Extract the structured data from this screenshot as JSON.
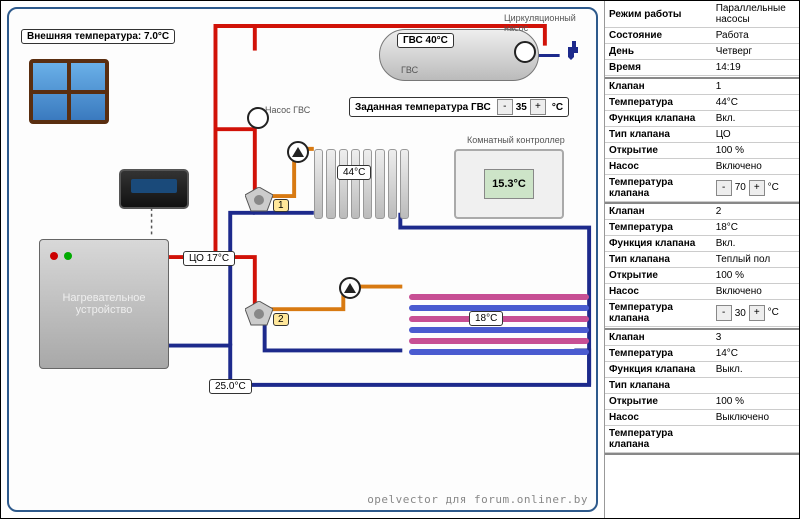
{
  "outside_temp_label": "Внешняя температура: 7.0°C",
  "circ_pump_label": "Циркуляционный насос",
  "gvs_pump_label": "Насос ГВС",
  "room_ctrl_label": "Комнатный контроллер",
  "boiler_label": "Нагревательное устройство",
  "tank_title": "ГВС 40°C",
  "tank_sub": "ГВС",
  "setpoint_label": "Заданная температура ГВС",
  "setpoint_value": "35",
  "setpoint_unit": "°C",
  "co_temp": "ЦО 17°C",
  "radiator_temp": "44°C",
  "room_temp": "15.3°C",
  "floor_temp": "18°C",
  "return_temp": "25.0°C",
  "valve1_num": "1",
  "valve2_num": "2",
  "colors": {
    "hot": "#d11208",
    "cold": "#1d2a8c",
    "warm": "#d87a12",
    "floor_a": "#c74f94",
    "floor_b": "#4a5bd0"
  },
  "panel": {
    "header": [
      [
        "Режим работы",
        "Параллельные насосы"
      ],
      [
        "Состояние",
        "Работа"
      ],
      [
        "День",
        "Четверг"
      ],
      [
        "Время",
        "14:19"
      ]
    ],
    "valves": [
      {
        "n": "1",
        "t": "44°C",
        "f": "Вкл.",
        "type": "ЦО",
        "open": "100 %",
        "pump": "Включено",
        "set": "70"
      },
      {
        "n": "2",
        "t": "18°C",
        "f": "Вкл.",
        "type": "Теплый пол",
        "open": "100 %",
        "pump": "Включено",
        "set": "30"
      },
      {
        "n": "3",
        "t": "14°C",
        "f": "Выкл.",
        "type": "",
        "open": "100 %",
        "pump": "Выключено",
        "set": ""
      }
    ],
    "row_labels": {
      "valve": "Клапан",
      "temp": "Температура",
      "func": "Функция клапана",
      "vtype": "Тип клапана",
      "open": "Открытие",
      "pump": "Насос",
      "vt": "Температура клапана"
    },
    "unit": "°C"
  },
  "watermark": "opelvector для forum.onliner.by"
}
